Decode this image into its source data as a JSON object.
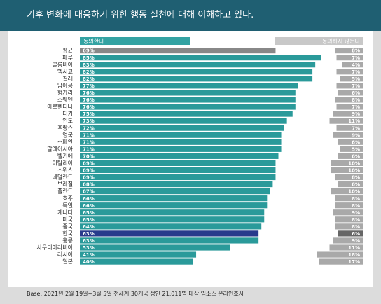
{
  "header": {
    "title": "기후 변화에 대응하기 위한 행동 실천에 대해 이해하고 있다."
  },
  "footer": {
    "note": "Base: 2021년 2월 19일~3월  5일 전세계 30개국 성인 21,011명 대상 입소스 온라인조사"
  },
  "colors": {
    "title_bg": "#1f5f72",
    "agree": "#2a9a9a",
    "agree_header": "#33a3a3",
    "average_agree": "#888888",
    "korea_agree": "#283a8c",
    "disagree": "#a9a9a9",
    "disagree_header": "#c8c8c8",
    "korea_disagree": "#666666"
  },
  "chart_data": {
    "type": "bar",
    "orientation": "horizontal",
    "series": [
      {
        "name": "동의한다",
        "unit": "%"
      },
      {
        "name": "동의하지 않는다",
        "unit": "%"
      }
    ],
    "rows": [
      {
        "category": "평균",
        "agree": 69,
        "disagree": 8,
        "highlight": "average"
      },
      {
        "category": "페루",
        "agree": 85,
        "disagree": 7
      },
      {
        "category": "콜롬비아",
        "agree": 83,
        "disagree": 4
      },
      {
        "category": "멕시코",
        "agree": 82,
        "disagree": 7
      },
      {
        "category": "칠레",
        "agree": 82,
        "disagree": 5
      },
      {
        "category": "남아공",
        "agree": 77,
        "disagree": 7
      },
      {
        "category": "헝가리",
        "agree": 76,
        "disagree": 6
      },
      {
        "category": "스웨덴",
        "agree": 76,
        "disagree": 8
      },
      {
        "category": "아르헨티나",
        "agree": 76,
        "disagree": 7
      },
      {
        "category": "터키",
        "agree": 75,
        "disagree": 9
      },
      {
        "category": "인도",
        "agree": 73,
        "disagree": 11
      },
      {
        "category": "프랑스",
        "agree": 72,
        "disagree": 7
      },
      {
        "category": "영국",
        "agree": 71,
        "disagree": 9
      },
      {
        "category": "스페인",
        "agree": 71,
        "disagree": 6
      },
      {
        "category": "말레이시아",
        "agree": 71,
        "disagree": 5
      },
      {
        "category": "벨기에",
        "agree": 70,
        "disagree": 6
      },
      {
        "category": "이탈리아",
        "agree": 69,
        "disagree": 10
      },
      {
        "category": "스위스",
        "agree": 69,
        "disagree": 10
      },
      {
        "category": "네덜란드",
        "agree": 69,
        "disagree": 8
      },
      {
        "category": "브라질",
        "agree": 68,
        "disagree": 6
      },
      {
        "category": "폴란드",
        "agree": 67,
        "disagree": 10
      },
      {
        "category": "호주",
        "agree": 66,
        "disagree": 8
      },
      {
        "category": "독일",
        "agree": 66,
        "disagree": 8
      },
      {
        "category": "캐나다",
        "agree": 65,
        "disagree": 9
      },
      {
        "category": "미국",
        "agree": 65,
        "disagree": 8
      },
      {
        "category": "중국",
        "agree": 64,
        "disagree": 8
      },
      {
        "category": "한국",
        "agree": 63,
        "disagree": 6,
        "highlight": "korea"
      },
      {
        "category": "홍콩",
        "agree": 63,
        "disagree": 9
      },
      {
        "category": "사우디아라비아",
        "agree": 53,
        "disagree": 11
      },
      {
        "category": "러시아",
        "agree": 41,
        "disagree": 18
      },
      {
        "category": "일본",
        "agree": 40,
        "disagree": 17
      }
    ]
  }
}
